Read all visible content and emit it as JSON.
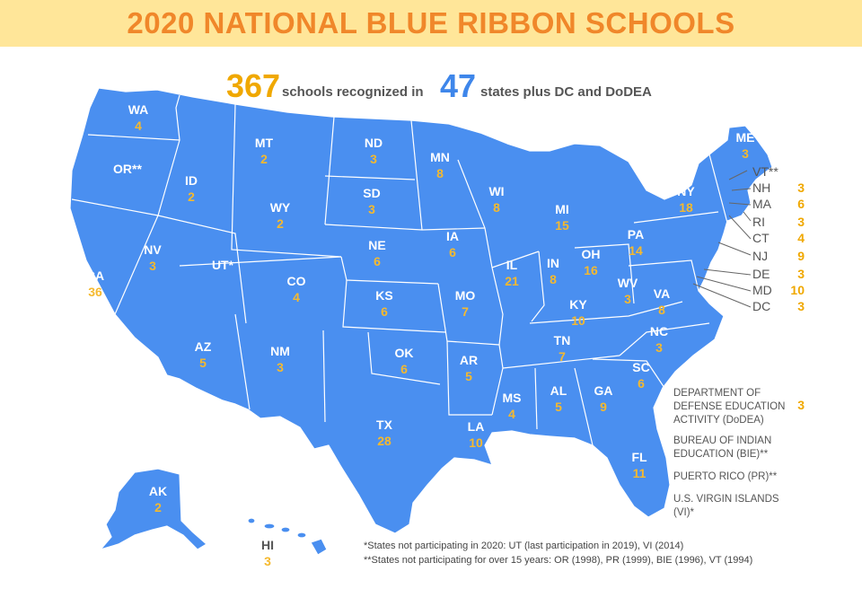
{
  "title": "2020 NATIONAL BLUE RIBBON SCHOOLS",
  "summary": {
    "schools_count": "367",
    "schools_text": "schools recognized in",
    "states_count": "47",
    "states_text": "states plus DC and DoDEA"
  },
  "colors": {
    "banner_bg": "#ffe699",
    "title": "#f0872a",
    "map_fill": "#4a8ff0",
    "count": "#f5b92e",
    "summary_count_orange": "#f0a800",
    "summary_count_blue": "#3e86ea"
  },
  "states": [
    {
      "abbr": "WA",
      "count": "4"
    },
    {
      "abbr": "OR**",
      "count": ""
    },
    {
      "abbr": "CA",
      "count": "36"
    },
    {
      "abbr": "ID",
      "count": "2"
    },
    {
      "abbr": "NV",
      "count": "3"
    },
    {
      "abbr": "UT*",
      "count": ""
    },
    {
      "abbr": "AZ",
      "count": "5"
    },
    {
      "abbr": "MT",
      "count": "2"
    },
    {
      "abbr": "WY",
      "count": "2"
    },
    {
      "abbr": "CO",
      "count": "4"
    },
    {
      "abbr": "NM",
      "count": "3"
    },
    {
      "abbr": "ND",
      "count": "3"
    },
    {
      "abbr": "SD",
      "count": "3"
    },
    {
      "abbr": "NE",
      "count": "6"
    },
    {
      "abbr": "KS",
      "count": "6"
    },
    {
      "abbr": "OK",
      "count": "6"
    },
    {
      "abbr": "TX",
      "count": "28"
    },
    {
      "abbr": "MN",
      "count": "8"
    },
    {
      "abbr": "IA",
      "count": "6"
    },
    {
      "abbr": "MO",
      "count": "7"
    },
    {
      "abbr": "AR",
      "count": "5"
    },
    {
      "abbr": "LA",
      "count": "10"
    },
    {
      "abbr": "WI",
      "count": "8"
    },
    {
      "abbr": "IL",
      "count": "21"
    },
    {
      "abbr": "MS",
      "count": "4"
    },
    {
      "abbr": "MI",
      "count": "15"
    },
    {
      "abbr": "IN",
      "count": "8"
    },
    {
      "abbr": "OH",
      "count": "16"
    },
    {
      "abbr": "KY",
      "count": "10"
    },
    {
      "abbr": "TN",
      "count": "7"
    },
    {
      "abbr": "AL",
      "count": "5"
    },
    {
      "abbr": "GA",
      "count": "9"
    },
    {
      "abbr": "FL",
      "count": "11"
    },
    {
      "abbr": "SC",
      "count": "6"
    },
    {
      "abbr": "NC",
      "count": "3"
    },
    {
      "abbr": "VA",
      "count": "8"
    },
    {
      "abbr": "WV",
      "count": "3"
    },
    {
      "abbr": "PA",
      "count": "14"
    },
    {
      "abbr": "NY",
      "count": "18"
    },
    {
      "abbr": "ME",
      "count": "3"
    },
    {
      "abbr": "AK",
      "count": "2"
    },
    {
      "abbr": "HI",
      "count": "3"
    }
  ],
  "east_states": [
    {
      "abbr": "VT**",
      "count": ""
    },
    {
      "abbr": "NH",
      "count": "3"
    },
    {
      "abbr": "MA",
      "count": "6"
    },
    {
      "abbr": "RI",
      "count": "3"
    },
    {
      "abbr": "CT",
      "count": "4"
    },
    {
      "abbr": "NJ",
      "count": "9"
    },
    {
      "abbr": "DE",
      "count": "3"
    },
    {
      "abbr": "MD",
      "count": "10"
    },
    {
      "abbr": "DC",
      "count": "3"
    }
  ],
  "others": [
    {
      "label": "DEPARTMENT OF DEFENSE EDUCATION ACTIVITY (DoDEA)",
      "count": "3"
    },
    {
      "label": "BUREAU OF INDIAN EDUCATION (BIE)**",
      "count": ""
    },
    {
      "label": "PUERTO RICO (PR)**",
      "count": ""
    },
    {
      "label": "U.S. VIRGIN ISLANDS (VI)*",
      "count": ""
    }
  ],
  "footnotes": [
    "*States not participating in 2020: UT (last participation in 2019), VI (2014)",
    "**States not participating for over 15 years: OR (1998), PR (1999), BIE (1996), VT (1994)"
  ]
}
